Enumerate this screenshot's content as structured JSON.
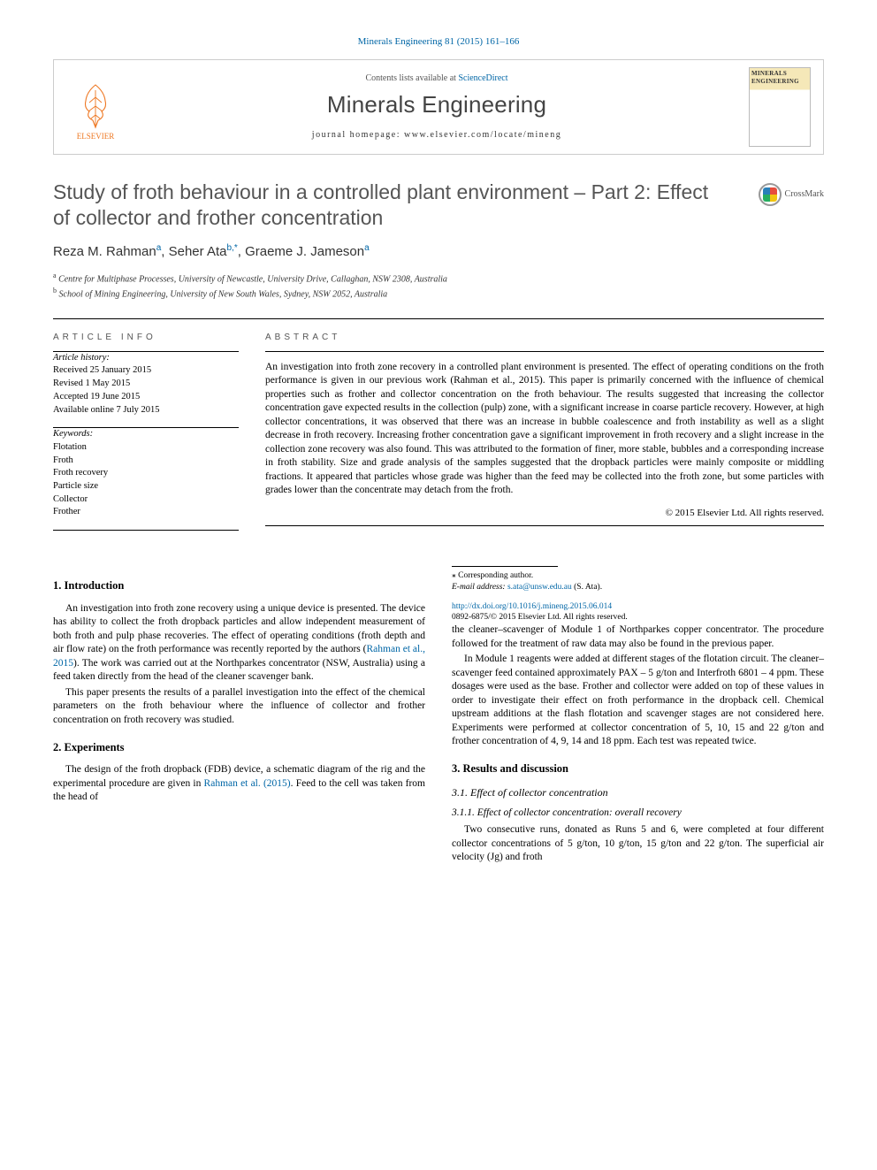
{
  "journal_ref": "Minerals Engineering 81 (2015) 161–166",
  "header": {
    "contents_prefix": "Contents lists available at ",
    "contents_link": "ScienceDirect",
    "journal_name": "Minerals Engineering",
    "homepage_label": "journal homepage: www.elsevier.com/locate/mineng",
    "publisher": "ELSEVIER",
    "cover_title": "MINERALS ENGINEERING"
  },
  "crossmark_label": "CrossMark",
  "title": "Study of froth behaviour in a controlled plant environment – Part 2: Effect of collector and frother concentration",
  "authors_html": "Reza M. Rahman|a|, Seher Ata|b,*|, Graeme J. Jameson|a|",
  "affiliations": [
    {
      "sup": "a",
      "text": "Centre for Multiphase Processes, University of Newcastle, University Drive, Callaghan, NSW 2308, Australia"
    },
    {
      "sup": "b",
      "text": "School of Mining Engineering, University of New South Wales, Sydney, NSW 2052, Australia"
    }
  ],
  "info_label": "ARTICLE INFO",
  "abstract_label": "ABSTRACT",
  "history_head": "Article history:",
  "history": [
    "Received 25 January 2015",
    "Revised 1 May 2015",
    "Accepted 19 June 2015",
    "Available online 7 July 2015"
  ],
  "keywords_head": "Keywords:",
  "keywords": [
    "Flotation",
    "Froth",
    "Froth recovery",
    "Particle size",
    "Collector",
    "Frother"
  ],
  "abstract": "An investigation into froth zone recovery in a controlled plant environment is presented. The effect of operating conditions on the froth performance is given in our previous work (Rahman et al., 2015). This paper is primarily concerned with the influence of chemical properties such as frother and collector concentration on the froth behaviour. The results suggested that increasing the collector concentration gave expected results in the collection (pulp) zone, with a significant increase in coarse particle recovery. However, at high collector concentrations, it was observed that there was an increase in bubble coalescence and froth instability as well as a slight decrease in froth recovery. Increasing frother concentration gave a significant improvement in froth recovery and a slight increase in the collection zone recovery was also found. This was attributed to the formation of finer, more stable, bubbles and a corresponding increase in froth stability. Size and grade analysis of the samples suggested that the dropback particles were mainly composite or middling fractions. It appeared that particles whose grade was higher than the feed may be collected into the froth zone, but some particles with grades lower than the concentrate may detach from the froth.",
  "copyright": "© 2015 Elsevier Ltd. All rights reserved.",
  "sections": {
    "s1": {
      "head": "1. Introduction",
      "p1": "An investigation into froth zone recovery using a unique device is presented. The device has ability to collect the froth dropback particles and allow independent measurement of both froth and pulp phase recoveries. The effect of operating conditions (froth depth and air flow rate) on the froth performance was recently reported by the authors (",
      "p1_link": "Rahman et al., 2015",
      "p1b": "). The work was carried out at the Northparkes concentrator (NSW, Australia) using a feed taken directly from the head of the cleaner scavenger bank.",
      "p2": "This paper presents the results of a parallel investigation into the effect of the chemical parameters on the froth behaviour where the influence of collector and frother concentration on froth recovery was studied."
    },
    "s2": {
      "head": "2. Experiments",
      "p1": "The design of the froth dropback (FDB) device, a schematic diagram of the rig and the experimental procedure are given in ",
      "p1_link": "Rahman et al. (2015)",
      "p1b": ". Feed to the cell was taken from the head of",
      "p2": "the cleaner–scavenger of Module 1 of Northparkes copper concentrator. The procedure followed for the treatment of raw data may also be found in the previous paper.",
      "p3": "In Module 1 reagents were added at different stages of the flotation circuit. The cleaner–scavenger feed contained approximately PAX – 5 g/ton and Interfroth 6801 – 4 ppm. These dosages were used as the base. Frother and collector were added on top of these values in order to investigate their effect on froth performance in the dropback cell. Chemical upstream additions at the flash flotation and scavenger stages are not considered here. Experiments were performed at collector concentration of 5, 10, 15 and 22 g/ton and frother concentration of 4, 9, 14 and 18 ppm. Each test was repeated twice."
    },
    "s3": {
      "head": "3. Results and discussion",
      "s31": "3.1. Effect of collector concentration",
      "s311": "3.1.1. Effect of collector concentration: overall recovery",
      "p1": "Two consecutive runs, donated as Runs 5 and 6, were completed at four different collector concentrations of 5 g/ton, 10 g/ton, 15 g/ton and 22 g/ton. The superficial air velocity (Jg) and froth"
    }
  },
  "corr_label": "⁎ Corresponding author.",
  "email_label": "E-mail address:",
  "email": "s.ata@unsw.edu.au",
  "email_who": "(S. Ata).",
  "doi": "http://dx.doi.org/10.1016/j.mineng.2015.06.014",
  "issn_line": "0892-6875/© 2015 Elsevier Ltd. All rights reserved.",
  "colors": {
    "link": "#0066a6",
    "publisher": "#ee7722",
    "text": "#000000",
    "muted": "#555555",
    "rule": "#000000"
  },
  "typography": {
    "body_pt": 11.5,
    "title_pt": 23,
    "journal_pt": 26,
    "abstract_pt": 11.5,
    "info_pt": 10.5,
    "letter_spacing_label": 4
  }
}
